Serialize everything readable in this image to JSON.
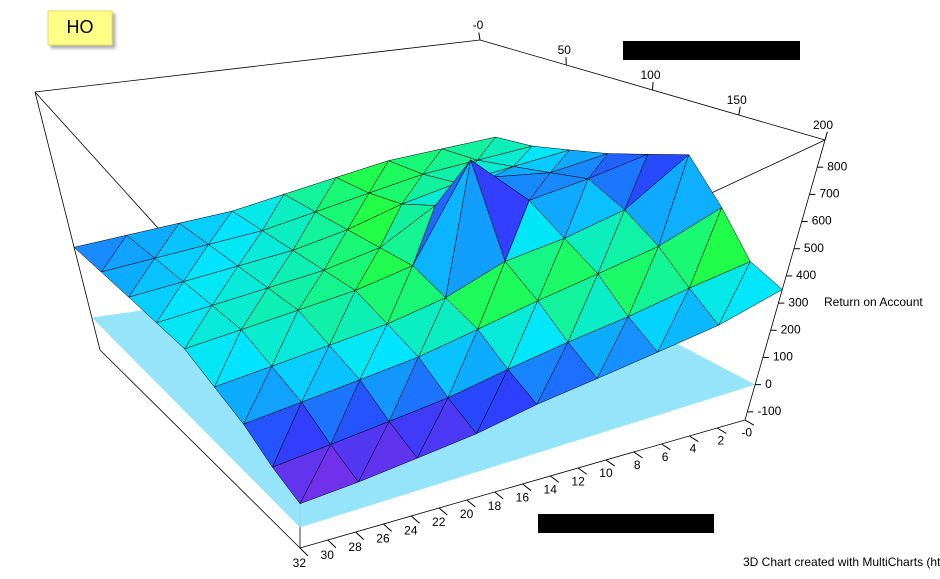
{
  "chart_data": {
    "type": "surface3d",
    "title": "HO",
    "z_label": "Return on Account",
    "credit": "3D Chart created with MultiCharts (ht",
    "x": [
      0,
      25,
      50,
      75,
      100,
      125,
      150,
      175,
      200
    ],
    "y": [
      0,
      4,
      8,
      12,
      16,
      20,
      24,
      28,
      32
    ],
    "z": [
      [
        500,
        520,
        560,
        600,
        650,
        700,
        550,
        400,
        350
      ],
      [
        480,
        500,
        540,
        580,
        620,
        560,
        480,
        380,
        300
      ],
      [
        460,
        480,
        520,
        620,
        600,
        520,
        450,
        350,
        280
      ],
      [
        420,
        440,
        480,
        560,
        840,
        500,
        420,
        330,
        260
      ],
      [
        380,
        400,
        420,
        440,
        460,
        420,
        380,
        300,
        240
      ],
      [
        340,
        360,
        380,
        400,
        420,
        380,
        340,
        260,
        200
      ],
      [
        320,
        340,
        360,
        380,
        400,
        360,
        320,
        240,
        180
      ],
      [
        300,
        320,
        340,
        360,
        380,
        340,
        300,
        220,
        160
      ],
      [
        280,
        300,
        320,
        340,
        360,
        320,
        280,
        200,
        150
      ]
    ],
    "xlim": [
      0,
      200
    ],
    "ylim": [
      0,
      32
    ],
    "zlim": [
      -130,
      900
    ],
    "xticks": [
      {
        "value": 0,
        "label": "-0"
      },
      50,
      100,
      150,
      200
    ],
    "yticks": [
      {
        "value": 0,
        "label": "-0"
      },
      2,
      4,
      6,
      8,
      10,
      12,
      14,
      16,
      18,
      20,
      22,
      24,
      26,
      28,
      30,
      32
    ],
    "zticks": [
      -100,
      0,
      100,
      200,
      300,
      400,
      500,
      600,
      700,
      800
    ],
    "plane_color": "#8fe3fa",
    "colormap": [
      "#8a2be2",
      "#2a40ff",
      "#00e5ff",
      "#22ff44",
      "#00e5ff",
      "#2a40ff",
      "#ff30ff",
      "#ff2020"
    ]
  }
}
